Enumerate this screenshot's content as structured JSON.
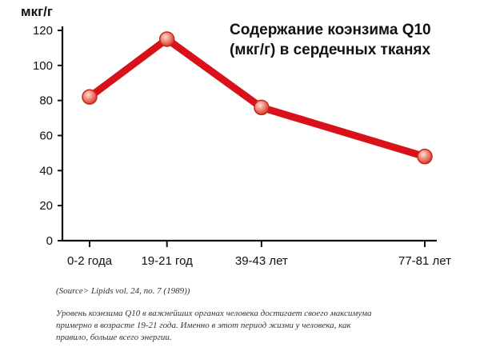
{
  "chart_data": {
    "type": "line",
    "title_lines": [
      "Содержание коэнзима Q10",
      "(мкг/г) в сердечных тканях"
    ],
    "ylabel": "мкг/г",
    "xlabel": "",
    "categories": [
      "0-2 года",
      "19-21 год",
      "39-43 лет",
      "77-81 лет"
    ],
    "x": [
      1,
      19,
      41,
      79
    ],
    "values": [
      82,
      115,
      76,
      48
    ],
    "ylim": [
      0,
      120
    ],
    "yticks": [
      0,
      20,
      40,
      60,
      80,
      100,
      120
    ],
    "grid": false,
    "legend": "none",
    "line_color": "#d8111b",
    "marker_color": "#f08070"
  },
  "source": "(Source> Lipids vol. 24, no. 7 (1989))",
  "caption_lines": [
    "Уровень коэнзима Q10 в важнейших органах человека достигает своего максимума",
    "примерно в возрасте 19-21 года. Именно в этот период жизни у человека, как",
    "правило, больше всего энергии."
  ]
}
